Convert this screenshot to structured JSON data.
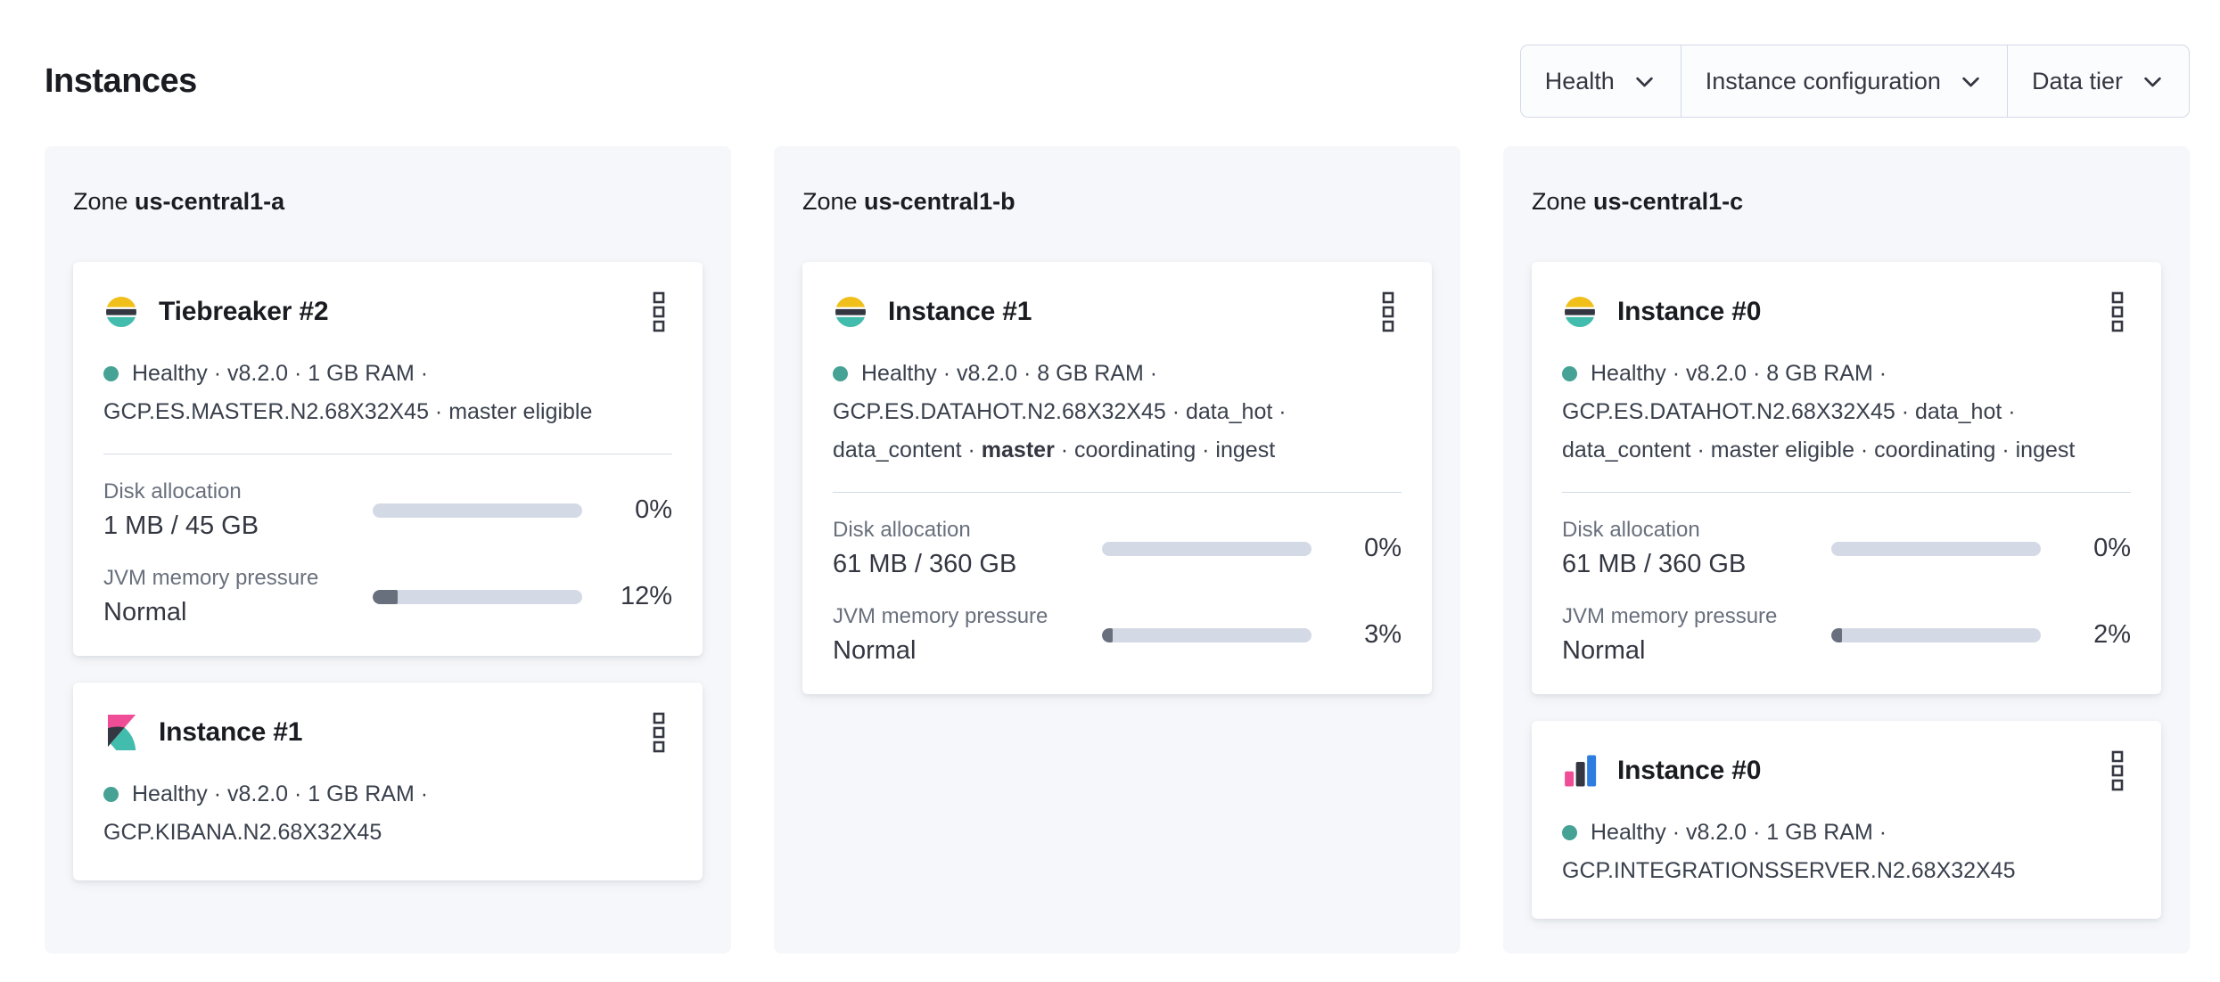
{
  "page": {
    "title": "Instances"
  },
  "filters": [
    {
      "id": "health",
      "label": "Health"
    },
    {
      "id": "instance-configuration",
      "label": "Instance configuration"
    },
    {
      "id": "data-tier",
      "label": "Data tier"
    }
  ],
  "colors": {
    "health_dot": "#45a294",
    "progress_track": "#d3dae6",
    "progress_fill": "#69707d",
    "logo_yellow": "#f0bf1a",
    "logo_dark": "#343741",
    "logo_teal": "#42bcad",
    "logo_pink": "#ef4e97",
    "logo_blue": "#2d7de1",
    "zone_bg": "#f5f7fa"
  },
  "zones": [
    {
      "label_prefix": "Zone",
      "name": "us-central1-a",
      "cards": [
        {
          "logo": "elasticsearch",
          "title": "Tiebreaker #2",
          "status_lines": [
            [
              {
                "t": "Healthy · v8.2.0 · 1 GB RAM ·"
              }
            ],
            [
              {
                "t": "GCP.ES.MASTER.N2.68X32X45 · master eligible"
              }
            ]
          ],
          "metrics": [
            {
              "label": "Disk allocation",
              "value": "1 MB / 45 GB",
              "percent": "0%",
              "fill_pct": 0
            },
            {
              "label": "JVM memory pressure",
              "value": "Normal",
              "percent": "12%",
              "fill_pct": 12
            }
          ]
        },
        {
          "logo": "kibana",
          "title": "Instance #1",
          "status_lines": [
            [
              {
                "t": "Healthy · v8.2.0 · 1 GB RAM ·"
              }
            ],
            [
              {
                "t": "GCP.KIBANA.N2.68X32X45"
              }
            ]
          ],
          "metrics": []
        }
      ]
    },
    {
      "label_prefix": "Zone",
      "name": "us-central1-b",
      "cards": [
        {
          "logo": "elasticsearch",
          "title": "Instance #1",
          "status_lines": [
            [
              {
                "t": "Healthy · v8.2.0 · 8 GB RAM ·"
              }
            ],
            [
              {
                "t": "GCP.ES.DATAHOT.N2.68X32X45 · data_hot ·"
              }
            ],
            [
              {
                "t": "data_content · "
              },
              {
                "t": "master",
                "b": true
              },
              {
                "t": " · coordinating · ingest"
              }
            ]
          ],
          "metrics": [
            {
              "label": "Disk allocation",
              "value": "61 MB / 360 GB",
              "percent": "0%",
              "fill_pct": 0
            },
            {
              "label": "JVM memory pressure",
              "value": "Normal",
              "percent": "3%",
              "fill_pct": 3
            }
          ]
        }
      ]
    },
    {
      "label_prefix": "Zone",
      "name": "us-central1-c",
      "cards": [
        {
          "logo": "elasticsearch",
          "title": "Instance #0",
          "status_lines": [
            [
              {
                "t": "Healthy · v8.2.0 · 8 GB RAM ·"
              }
            ],
            [
              {
                "t": "GCP.ES.DATAHOT.N2.68X32X45 · data_hot ·"
              }
            ],
            [
              {
                "t": "data_content · master eligible · coordinating · ingest"
              }
            ]
          ],
          "metrics": [
            {
              "label": "Disk allocation",
              "value": "61 MB / 360 GB",
              "percent": "0%",
              "fill_pct": 0
            },
            {
              "label": "JVM memory pressure",
              "value": "Normal",
              "percent": "2%",
              "fill_pct": 2
            }
          ]
        },
        {
          "logo": "integrations-server",
          "title": "Instance #0",
          "status_lines": [
            [
              {
                "t": "Healthy · v8.2.0 · 1 GB RAM ·"
              }
            ],
            [
              {
                "t": "GCP.INTEGRATIONSSERVER.N2.68X32X45"
              }
            ]
          ],
          "metrics": []
        }
      ]
    }
  ]
}
